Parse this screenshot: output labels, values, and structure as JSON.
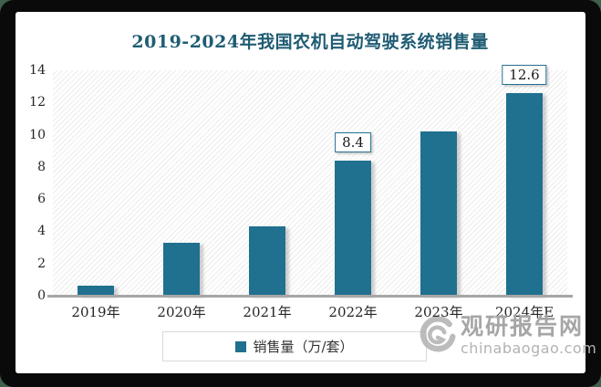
{
  "window": {
    "background_color": "#3f5e4b",
    "frame_color": "#0a0a0a",
    "panel_color": "#ffffff"
  },
  "chart": {
    "colors": {
      "bar": "#20708f",
      "title": "#1f5c73",
      "axis_line": "#a6a6a6",
      "data_label_border": "#24708f",
      "legend_border": "#d9d9d9",
      "watermark_text": "#a6a6a6"
    }
  },
  "chart_data": {
    "type": "bar",
    "title": "2019-2024年我国农机自动驾驶系统销售量",
    "categories": [
      "2019年",
      "2020年",
      "2021年",
      "2022年",
      "2023年",
      "2024年E"
    ],
    "values": [
      0.65,
      3.3,
      4.3,
      8.4,
      10.2,
      12.6
    ],
    "data_labels": [
      "",
      "",
      "",
      "8.4",
      "",
      "12.6"
    ],
    "xlabel": "",
    "ylabel": "",
    "ylim": [
      0,
      14
    ],
    "y_tick_step": 2,
    "y_ticks": [
      "0",
      "2",
      "4",
      "6",
      "8",
      "10",
      "12",
      "14"
    ],
    "grid": "off",
    "plot_background": "diagonal-hatch",
    "legend": {
      "label": "销售量（万/套）",
      "position": "bottom"
    }
  },
  "watermark": {
    "name": "观研报告网",
    "domain": "chinabaogao.com",
    "logo": "g-swirl-icon"
  }
}
